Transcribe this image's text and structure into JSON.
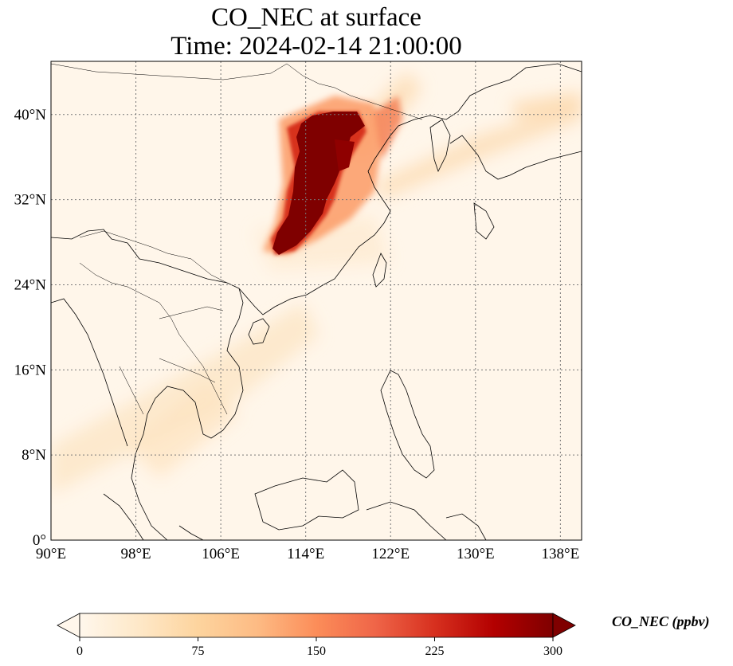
{
  "title": {
    "line1": "CO_NEC at surface",
    "line2": "Time: 2024-02-14 21:00:00"
  },
  "map": {
    "lon_range": [
      90,
      140
    ],
    "lat_range": [
      0,
      45
    ],
    "gridlines": true,
    "lon_ticks": [
      {
        "value": 90,
        "label": "90°E"
      },
      {
        "value": 98,
        "label": "98°E"
      },
      {
        "value": 106,
        "label": "106°E"
      },
      {
        "value": 114,
        "label": "114°E"
      },
      {
        "value": 122,
        "label": "122°E"
      },
      {
        "value": 130,
        "label": "130°E"
      },
      {
        "value": 138,
        "label": "138°E"
      }
    ],
    "lat_ticks": [
      {
        "value": 0,
        "label": "0°"
      },
      {
        "value": 8,
        "label": "8°N"
      },
      {
        "value": 16,
        "label": "16°N"
      },
      {
        "value": 24,
        "label": "24°N"
      },
      {
        "value": 32,
        "label": "32°N"
      },
      {
        "value": 40,
        "label": "40°N"
      }
    ]
  },
  "colorbar": {
    "title": "CO_NEC (ppbv)",
    "min": 0,
    "max": 300,
    "ticks": [
      {
        "value": 0,
        "label": "0"
      },
      {
        "value": 75,
        "label": "75"
      },
      {
        "value": 150,
        "label": "150"
      },
      {
        "value": 225,
        "label": "225"
      },
      {
        "value": 300,
        "label": "300"
      }
    ],
    "colormap": "OrRd",
    "colors": [
      "#fff7ec",
      "#fee8c8",
      "#fdd49e",
      "#fdbb84",
      "#fc8d59",
      "#ef6548",
      "#d7301f",
      "#b30000",
      "#7f0000"
    ]
  }
}
